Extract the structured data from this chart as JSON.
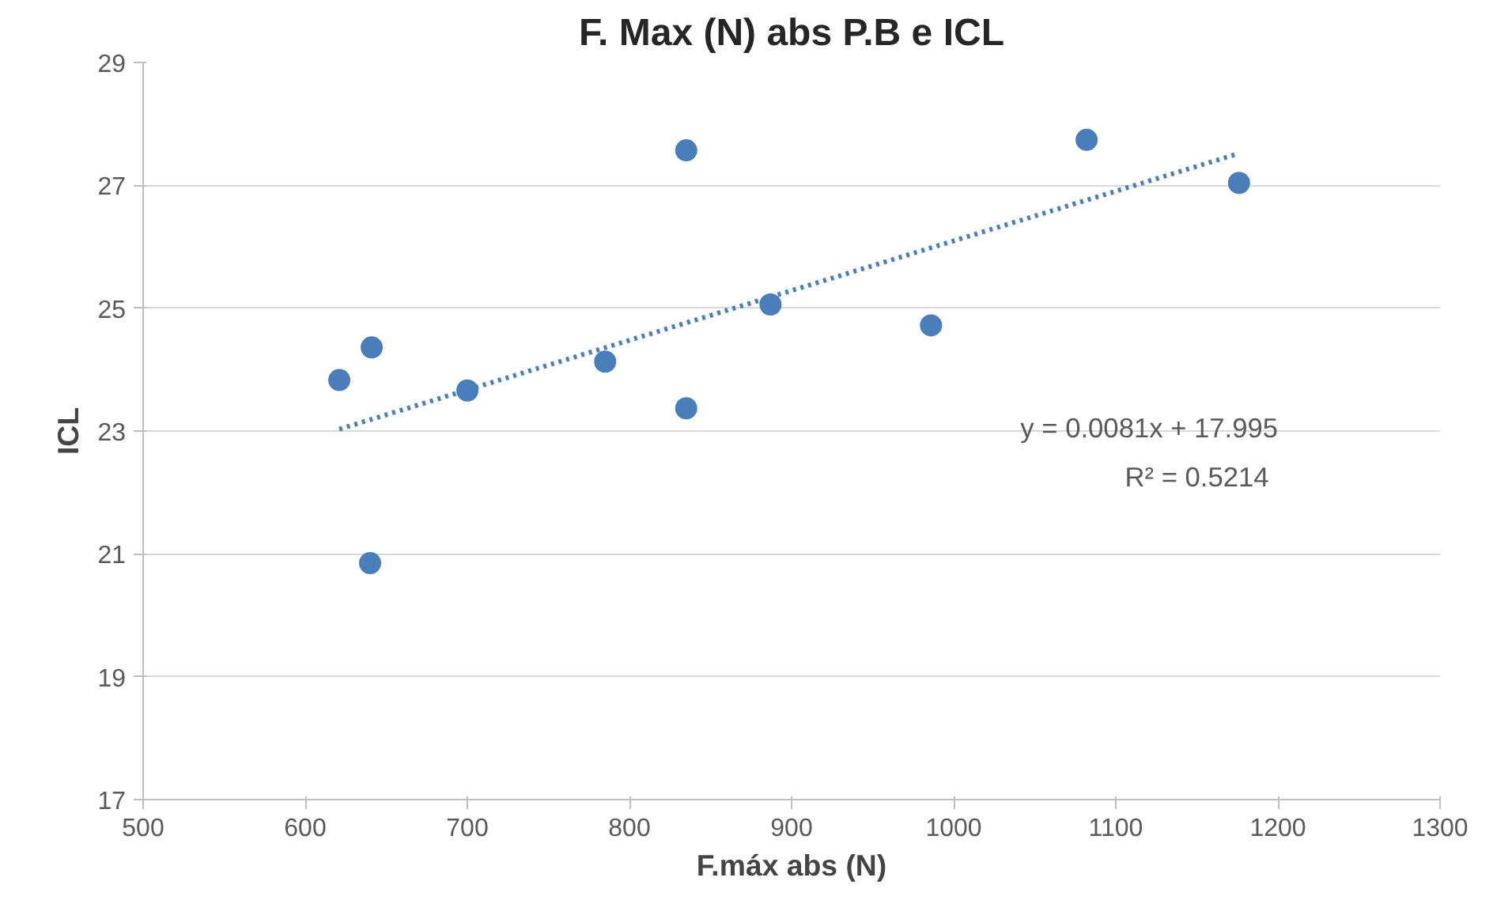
{
  "chart_data": {
    "type": "scatter",
    "title": "F. Max (N) abs P.B e ICL",
    "xlabel": "F.máx abs (N)",
    "ylabel": "ICL",
    "series": [
      {
        "color": "#4a7ebb",
        "marker": "circle",
        "x": [
          621,
          641,
          640,
          700,
          785,
          835,
          835,
          887,
          986,
          1082,
          1176
        ],
        "values": [
          23.83,
          24.36,
          20.85,
          23.66,
          24.13,
          27.57,
          23.37,
          25.06,
          24.72,
          27.74,
          27.04
        ]
      },
      {
        "type": "line",
        "color": "#4a7ebb",
        "line_style": "dotted",
        "marker": "none",
        "x": [
          621,
          1176
        ],
        "values": [
          23.03,
          27.52
        ]
      }
    ],
    "xlim": [
      500,
      1300
    ],
    "ylim": [
      17,
      29
    ],
    "xticks": [
      500,
      600,
      700,
      800,
      900,
      1000,
      1100,
      1200,
      1300
    ],
    "yticks": [
      17,
      19,
      21,
      23,
      25,
      27,
      29
    ],
    "grid": "y",
    "annotations": [
      "y = 0.0081x + 17.995",
      "R² = 0.5214"
    ]
  }
}
